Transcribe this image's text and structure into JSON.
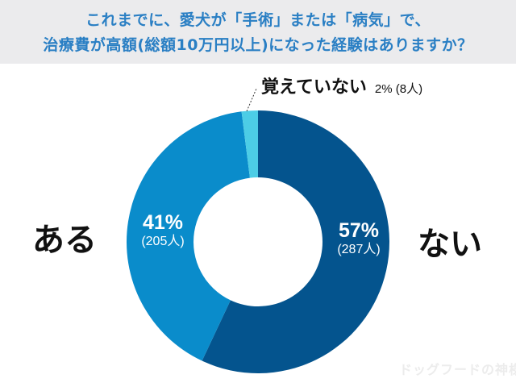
{
  "header": {
    "title_line1": "これまでに、愛犬が「手術」または「病気」で、",
    "title_line2": "治療費が高額(総額10万円以上)になった経験はありますか？"
  },
  "labels": {
    "left": "ある",
    "right": "ない"
  },
  "slices": [
    {
      "name": "ない",
      "pct_label": "57%",
      "count_label": "(287人)",
      "color": "#04548e"
    },
    {
      "name": "ある",
      "pct_label": "41%",
      "count_label": "(205人)",
      "color": "#0a8ccb"
    },
    {
      "name": "覚えていない",
      "pct_label": "2%",
      "count_label": "(8人)",
      "color": "#4ccde6"
    }
  ],
  "callout": {
    "name": "覚えていない",
    "value": "2% (8人)"
  },
  "watermark": "ドッグフードの神様",
  "chart_data": {
    "type": "pie",
    "subtype": "donut",
    "title": "これまでに、愛犬が「手術」または「病気」で、治療費が高額(総額10万円以上)になった経験はありますか？",
    "categories": [
      "ない",
      "ある",
      "覚えていない"
    ],
    "values": [
      57,
      41,
      2
    ],
    "counts": [
      287,
      205,
      8
    ],
    "units": "%",
    "colors": [
      "#04548e",
      "#0a8ccb",
      "#4ccde6"
    ],
    "start_angle": "12 o'clock, clockwise",
    "legend": "none (direct labels)"
  }
}
